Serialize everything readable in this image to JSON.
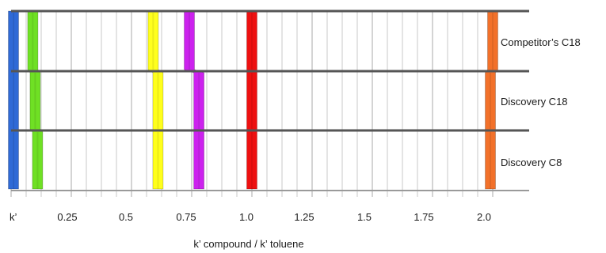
{
  "chart_data": {
    "type": "bar",
    "orientation": "relative-retention comparison (colored bands per compound on each column row)",
    "xlabel": "k’ compound / k’ toluene",
    "x_tick_labels": [
      "k’",
      "0.25",
      "0.5",
      "0.75",
      "1.0",
      "1.25",
      "1.5",
      "1.75",
      "2.0"
    ],
    "x_tick_values": [
      0,
      0.25,
      0.5,
      0.75,
      1.0,
      1.25,
      1.5,
      1.75,
      2.0
    ],
    "xlim": [
      0,
      2.0
    ],
    "minor_grid_step": 0.0625,
    "grid": true,
    "rows": [
      "Competitor’s C18",
      "Discovery C18",
      "Discovery C8"
    ],
    "series": [
      {
        "color": "#2f6ad6",
        "values": [
          0.01,
          0.01,
          0.01
        ]
      },
      {
        "color": "#6fe024",
        "values": [
          0.09,
          0.1,
          0.11
        ]
      },
      {
        "color": "#ffff1c",
        "values": [
          0.59,
          0.61,
          0.61
        ]
      },
      {
        "color": "#cc22ee",
        "values": [
          0.74,
          0.78,
          0.78
        ]
      },
      {
        "color": "#ee1111",
        "values": [
          1.0,
          1.0,
          1.0
        ]
      },
      {
        "color": "#f2712a",
        "values": [
          2.0,
          1.99,
          1.99
        ]
      }
    ]
  }
}
